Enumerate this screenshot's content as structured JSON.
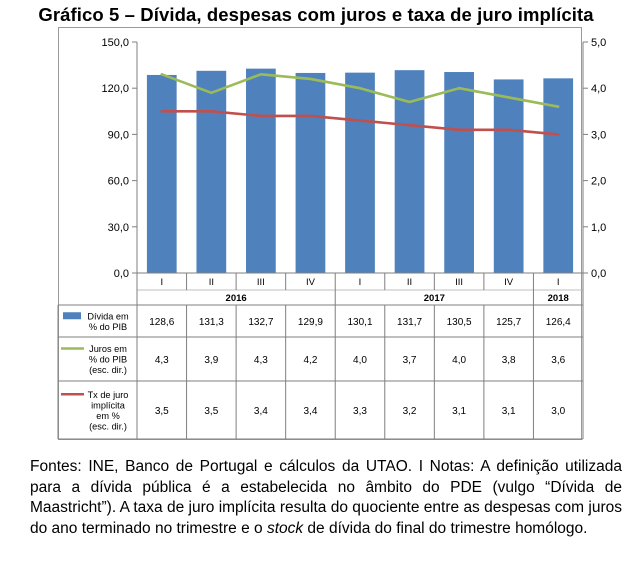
{
  "title": "Gráfico 5 – Dívida, despesas com juros e taxa de juro implícita",
  "chart_data": {
    "type": "bar",
    "title": "Gráfico 5 – Dívida, despesas com juros e taxa de juro implícita",
    "categories": [
      "I",
      "II",
      "III",
      "IV",
      "I",
      "II",
      "III",
      "IV",
      "I"
    ],
    "year_groups": [
      {
        "label": "2016",
        "count": 4
      },
      {
        "label": "2017",
        "count": 4
      },
      {
        "label": "2018",
        "count": 1
      }
    ],
    "ylim": [
      0,
      150
    ],
    "y_ticks": [
      "0,0",
      "30,0",
      "60,0",
      "90,0",
      "120,0",
      "150,0"
    ],
    "y2lim": [
      0,
      5
    ],
    "y2_ticks": [
      "0,0",
      "1,0",
      "2,0",
      "3,0",
      "4,0",
      "5,0"
    ],
    "grid": false,
    "legend_placement": "table-left",
    "series": [
      {
        "name": "Dívida em % do PIB",
        "name_lines": [
          "Dívida em",
          "% do PIB"
        ],
        "type": "bar",
        "axis": "left",
        "color": "#4f81bd",
        "values": [
          128.6,
          131.3,
          132.7,
          129.9,
          130.1,
          131.7,
          130.5,
          125.7,
          126.4
        ],
        "labels": [
          "128,6",
          "131,3",
          "132,7",
          "129,9",
          "130,1",
          "131,7",
          "130,5",
          "125,7",
          "126,4"
        ]
      },
      {
        "name": "Juros em % do PIB (esc. dir.)",
        "name_lines": [
          "Juros em",
          "% do PIB",
          "(esc. dir.)"
        ],
        "type": "line",
        "axis": "right",
        "color": "#9bbb59",
        "values": [
          4.3,
          3.9,
          4.3,
          4.2,
          4.0,
          3.7,
          4.0,
          3.8,
          3.6
        ],
        "labels": [
          "4,3",
          "3,9",
          "4,3",
          "4,2",
          "4,0",
          "3,7",
          "4,0",
          "3,8",
          "3,6"
        ]
      },
      {
        "name": "Tx de juro implícita em % (esc. dir.)",
        "name_lines": [
          "Tx de juro",
          "implícita",
          "em %",
          "(esc. dir.)"
        ],
        "type": "line",
        "axis": "right",
        "color": "#c0504d",
        "values": [
          3.5,
          3.5,
          3.4,
          3.4,
          3.3,
          3.2,
          3.1,
          3.1,
          3.0
        ],
        "labels": [
          "3,5",
          "3,5",
          "3,4",
          "3,4",
          "3,3",
          "3,2",
          "3,1",
          "3,1",
          "3,0"
        ]
      }
    ]
  },
  "footer": {
    "part1": "Fontes: INE, Banco de Portugal e cálculos da UTAO. I Notas: A definição utilizada para a dívida pública é a estabelecida no âmbito do PDE (vulgo “Dívida de Maastricht”). A taxa de juro implícita resulta do quociente entre as despesas com juros do ano terminado no trimestre e o ",
    "italic": "stock",
    "part2": " de dívida do final do trimestre homólogo."
  }
}
